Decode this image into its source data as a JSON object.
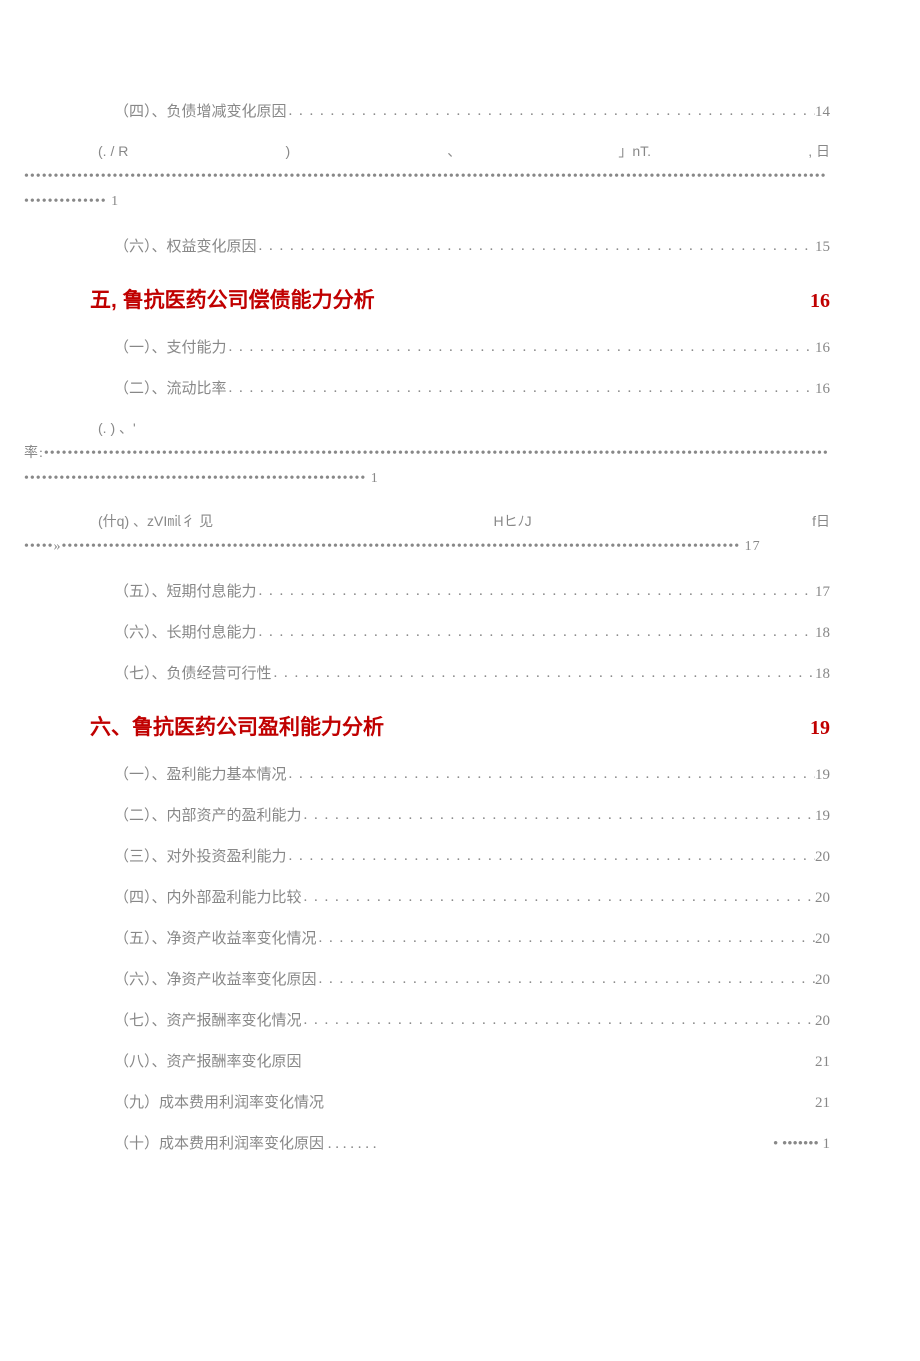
{
  "colors": {
    "heading": "#c00000",
    "item": "#888888",
    "bg": "#ffffff"
  },
  "entries": [
    {
      "type": "item",
      "title": "（四）、负债增减变化原因",
      "page": "14"
    },
    {
      "type": "weird",
      "row1_parts": [
        "(. / R",
        ")",
        "、",
        "」nT.",
        ", 日"
      ],
      "row2": "••••••••••••••••••••••••••••••••••••••••••••••••••••••••••••••••••••••••••••••••••••••••••••••••••••••••••••••••••••••••••••••••••••••••••••••••••••••     1"
    },
    {
      "type": "item",
      "title": "（六）、权益变化原因",
      "page": "15"
    },
    {
      "type": "heading",
      "title": "五, 鲁抗医药公司偿债能力分析",
      "page": "16"
    },
    {
      "type": "item",
      "title": "（一）、支付能力",
      "page": "16"
    },
    {
      "type": "item",
      "title": "（二）、流动比率",
      "page": "16"
    },
    {
      "type": "weird",
      "row1_parts": [
        "(. )  、'",
        "",
        "",
        "",
        ""
      ],
      "row2": "率:•••••••••••••••••••••••••••••••••••••••••••••••••••••••••••••••••••••••••••••••••••••••••••••••••••••••••••••••••••••••••••••••••••••••••••••••••••••••••••••••••••••••••••••••••••••••••••••••     1"
    },
    {
      "type": "weird",
      "row1_parts": [
        "(什q) 、zVI㏕彳 见",
        "",
        "HヒﾉJ",
        "",
        "f日"
      ],
      "row2": "•••••»•••••••••••••••••••••••••••••••••••••••••••••••••••••••••••••••••••••••••••••••••••••••••••••••••••••••••••••••••••     17"
    },
    {
      "type": "item",
      "title": "（五）、短期付息能力",
      "leading_space": true,
      "page": "17"
    },
    {
      "type": "item",
      "title": "（六）、长期付息能力",
      "leading_space": true,
      "page": "18"
    },
    {
      "type": "item",
      "title": "（七）、负债经营可行性",
      "leading_space": true,
      "page": "18"
    },
    {
      "type": "heading",
      "title": "六、鲁抗医药公司盈利能力分析",
      "page": "19"
    },
    {
      "type": "item",
      "title": "（一）、盈利能力基本情况",
      "page": "19"
    },
    {
      "type": "item",
      "title": "（二）、内部资产的盈利能力",
      "page": "19"
    },
    {
      "type": "item",
      "title": "（三）、对外投资盈利能力",
      "page": "20"
    },
    {
      "type": "item",
      "title": "（四）、内外部盈利能力比较",
      "leading_space": true,
      "page": "20"
    },
    {
      "type": "item",
      "title": "（五）、净资产收益率变化情况",
      "leading_space": true,
      "page": "20"
    },
    {
      "type": "item",
      "title": "（六）、净资产收益率变化原因",
      "leading_space": true,
      "page": "20"
    },
    {
      "type": "item",
      "title": "（七）、资产报酬率变化情况",
      "leading_space": true,
      "page": "20"
    },
    {
      "type": "item",
      "title": "（八）、资产报酬率变化原因",
      "no_leader": true,
      "page": "21"
    },
    {
      "type": "item",
      "title": "（九）成本费用利润率变化情况",
      "no_leader": true,
      "page": "21"
    },
    {
      "type": "item",
      "title": "（十）成本费用利润率变化原因 . . . . . . .",
      "no_leader": true,
      "page": "•  •••••••  1"
    }
  ],
  "leader_char": ". . . . . . . . . . . . . . . . . . . . . . . . . . . . . . . . . . . . . . . . . . . . . . . . . . . . . . . . . . . . . . . . . . . . . . . . . . . . . . . . . . . . . . . . . . . . . ."
}
